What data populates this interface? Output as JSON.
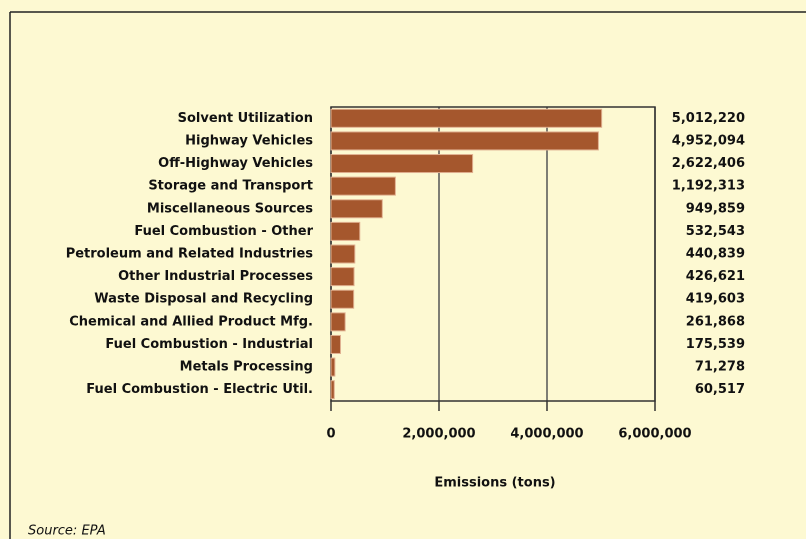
{
  "chart_data": {
    "type": "bar",
    "orientation": "horizontal",
    "categories": [
      "Solvent Utilization",
      "Highway Vehicles",
      "Off-Highway Vehicles",
      "Storage and Transport",
      "Miscellaneous Sources",
      "Fuel Combustion - Other",
      "Petroleum and Related Industries",
      "Other Industrial Processes",
      "Waste Disposal and Recycling",
      "Chemical and Allied Product Mfg.",
      "Fuel Combustion - Industrial",
      "Metals Processing",
      "Fuel Combustion - Electric Util."
    ],
    "values": [
      5012220,
      4952094,
      2622406,
      1192313,
      949859,
      532543,
      440839,
      426621,
      419603,
      261868,
      175539,
      71278,
      60517
    ],
    "value_labels": [
      "5,012,220",
      "4,952,094",
      "2,622,406",
      "1,192,313",
      "949,859",
      "532,543",
      "440,839",
      "426,621",
      "419,603",
      "261,868",
      "175,539",
      "71,278",
      "60,517"
    ],
    "color": "#a5572d",
    "xlim": [
      0,
      6000000
    ],
    "xticks": [
      0,
      {
        "value": 2000000,
        "label": "2,000,000"
      },
      {
        "value": 4000000,
        "label": "4,000,000"
      },
      {
        "value": 6000000,
        "label": "6,000,000"
      }
    ],
    "xlabel": "Emissions (tons)",
    "grid": true,
    "source": "Source: EPA"
  }
}
